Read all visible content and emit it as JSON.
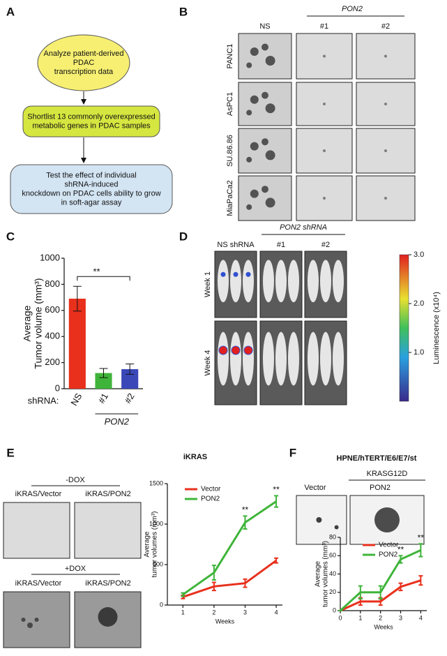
{
  "panels": {
    "a": {
      "label": "A",
      "steps": [
        [
          "Analyze patient-derived",
          "PDAC",
          "transcription data"
        ],
        [
          "Shortlist 13 commonly overexpressed",
          "metabolic genes in PDAC samples"
        ],
        [
          "Test the effect of individual",
          "shRNA-induced",
          "knockdown on PDAC cells ability to grow",
          "in soft-agar assay"
        ]
      ]
    },
    "b": {
      "label": "B",
      "group": "PON2",
      "columns": [
        "NS",
        "#1",
        "#2"
      ],
      "rows": [
        "PANC1",
        "AsPC1",
        "SU.86.86",
        "MiaPaCa2"
      ]
    },
    "c": {
      "label": "C"
    },
    "d": {
      "label": "D",
      "group": "PON2 shRNA",
      "columns": [
        "NS shRNA",
        "#1",
        "#2"
      ],
      "rows": [
        "Week 1",
        "Week 4"
      ],
      "colorbar": {
        "title": "Luminescence (x10⁴)",
        "lim": [
          0,
          3
        ],
        "ticks": [
          {
            "value": 3,
            "label": "3.0"
          },
          {
            "value": 2,
            "label": "2.0"
          },
          {
            "value": 1,
            "label": "1.0"
          }
        ]
      }
    },
    "e": {
      "label": "E",
      "title": "iKRAS",
      "conditions": [
        "-DOX",
        "+DOX"
      ],
      "images": [
        "iKRAS/Vector",
        "iKRAS/PON2"
      ]
    },
    "f": {
      "label": "F",
      "title": "HPNE/hTERT/E6/E7/st",
      "group": "KRASG12D",
      "images": [
        "Vector",
        "PON2"
      ]
    }
  },
  "chart_data": [
    {
      "type": "bar",
      "ylabel": [
        "Average",
        "Tumor volume (mm³)"
      ],
      "categories": [
        "NS",
        "#1",
        "#2"
      ],
      "values": [
        690,
        120,
        150
      ],
      "errors": [
        95,
        35,
        40
      ],
      "colors": [
        "#e8301c",
        "#3fb43a",
        "#3a48b8"
      ],
      "ylim": [
        0,
        1000
      ],
      "yticks": [
        0,
        200,
        400,
        600,
        800,
        1000
      ],
      "x_prefix": "shRNA:",
      "group_label": "PON2",
      "annotation": "**"
    },
    {
      "type": "line",
      "ylabel": [
        "Average",
        "tumor volumes (mm³)"
      ],
      "xlabel": "Weeks",
      "x": [
        1,
        2,
        3,
        4
      ],
      "xlim": [
        0.5,
        4.2
      ],
      "xticks": [
        1,
        2,
        3,
        4
      ],
      "ylim": [
        0,
        1500
      ],
      "yticks": [
        0,
        500,
        1000,
        1500
      ],
      "series": [
        {
          "name": "Vector",
          "color": "#e8301c",
          "values": [
            100,
            230,
            270,
            550
          ],
          "errors": [
            20,
            50,
            50,
            30
          ]
        },
        {
          "name": "PON2",
          "color": "#3fb43a",
          "values": [
            130,
            400,
            1020,
            1280
          ],
          "errors": [
            20,
            90,
            80,
            70
          ]
        }
      ],
      "annotations": [
        null,
        null,
        "**",
        "**"
      ]
    },
    {
      "type": "line",
      "ylabel": [
        "Average",
        "tumor volumes (mm³)"
      ],
      "xlabel": "Weeks",
      "x": [
        0,
        1,
        2,
        3,
        4
      ],
      "xlim": [
        0,
        4.3
      ],
      "xticks": [
        0,
        1,
        2,
        3,
        4
      ],
      "ylim": [
        0,
        80
      ],
      "yticks": [
        0,
        20,
        40,
        60,
        80
      ],
      "series": [
        {
          "name": "Vector",
          "color": "#e8301c",
          "values": [
            0,
            10,
            10,
            26,
            33
          ],
          "errors": [
            0,
            4,
            4,
            4,
            5
          ]
        },
        {
          "name": "PON2",
          "color": "#3fb43a",
          "values": [
            0,
            20,
            20,
            56,
            66
          ],
          "errors": [
            0,
            7,
            7,
            4,
            7
          ]
        }
      ],
      "annotations": [
        null,
        null,
        null,
        "**",
        "**"
      ]
    }
  ]
}
